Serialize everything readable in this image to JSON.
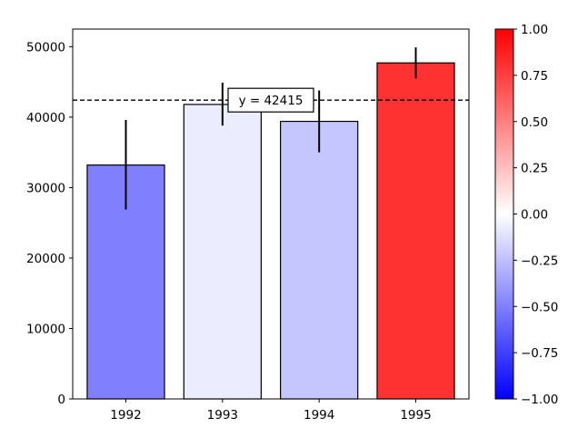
{
  "chart_data": {
    "type": "bar",
    "title": "",
    "xlabel": "",
    "ylabel": "",
    "categories": [
      "1992",
      "1993",
      "1994",
      "1995"
    ],
    "values": [
      33200,
      41800,
      39400,
      47700
    ],
    "errors": [
      {
        "low": 26900,
        "high": 39600
      },
      {
        "low": 38800,
        "high": 44900
      },
      {
        "low": 35000,
        "high": 43800
      },
      {
        "low": 45500,
        "high": 49900
      }
    ],
    "bar_colors": [
      "#8080ff",
      "#ececff",
      "#c6c6ff",
      "#ff3232"
    ],
    "ylim": [
      0,
      52500
    ],
    "yticks": [
      0,
      10000,
      20000,
      30000,
      40000,
      50000
    ],
    "ytick_labels": [
      "0",
      "10000",
      "20000",
      "30000",
      "40000",
      "50000"
    ],
    "reference_line": {
      "value": 42415,
      "label": "y = 42415",
      "style": "dashed"
    },
    "colorbar": {
      "range": [
        -1.0,
        1.0
      ],
      "ticks": [
        -1.0,
        -0.75,
        -0.5,
        -0.25,
        0.0,
        0.25,
        0.5,
        0.75,
        1.0
      ],
      "tick_labels": [
        "−1.00",
        "−0.75",
        "−0.50",
        "−0.25",
        "0.00",
        "0.25",
        "0.50",
        "0.75",
        "1.00"
      ],
      "colors": [
        "#0000ff",
        "#ffffff",
        "#ff0000"
      ]
    }
  }
}
